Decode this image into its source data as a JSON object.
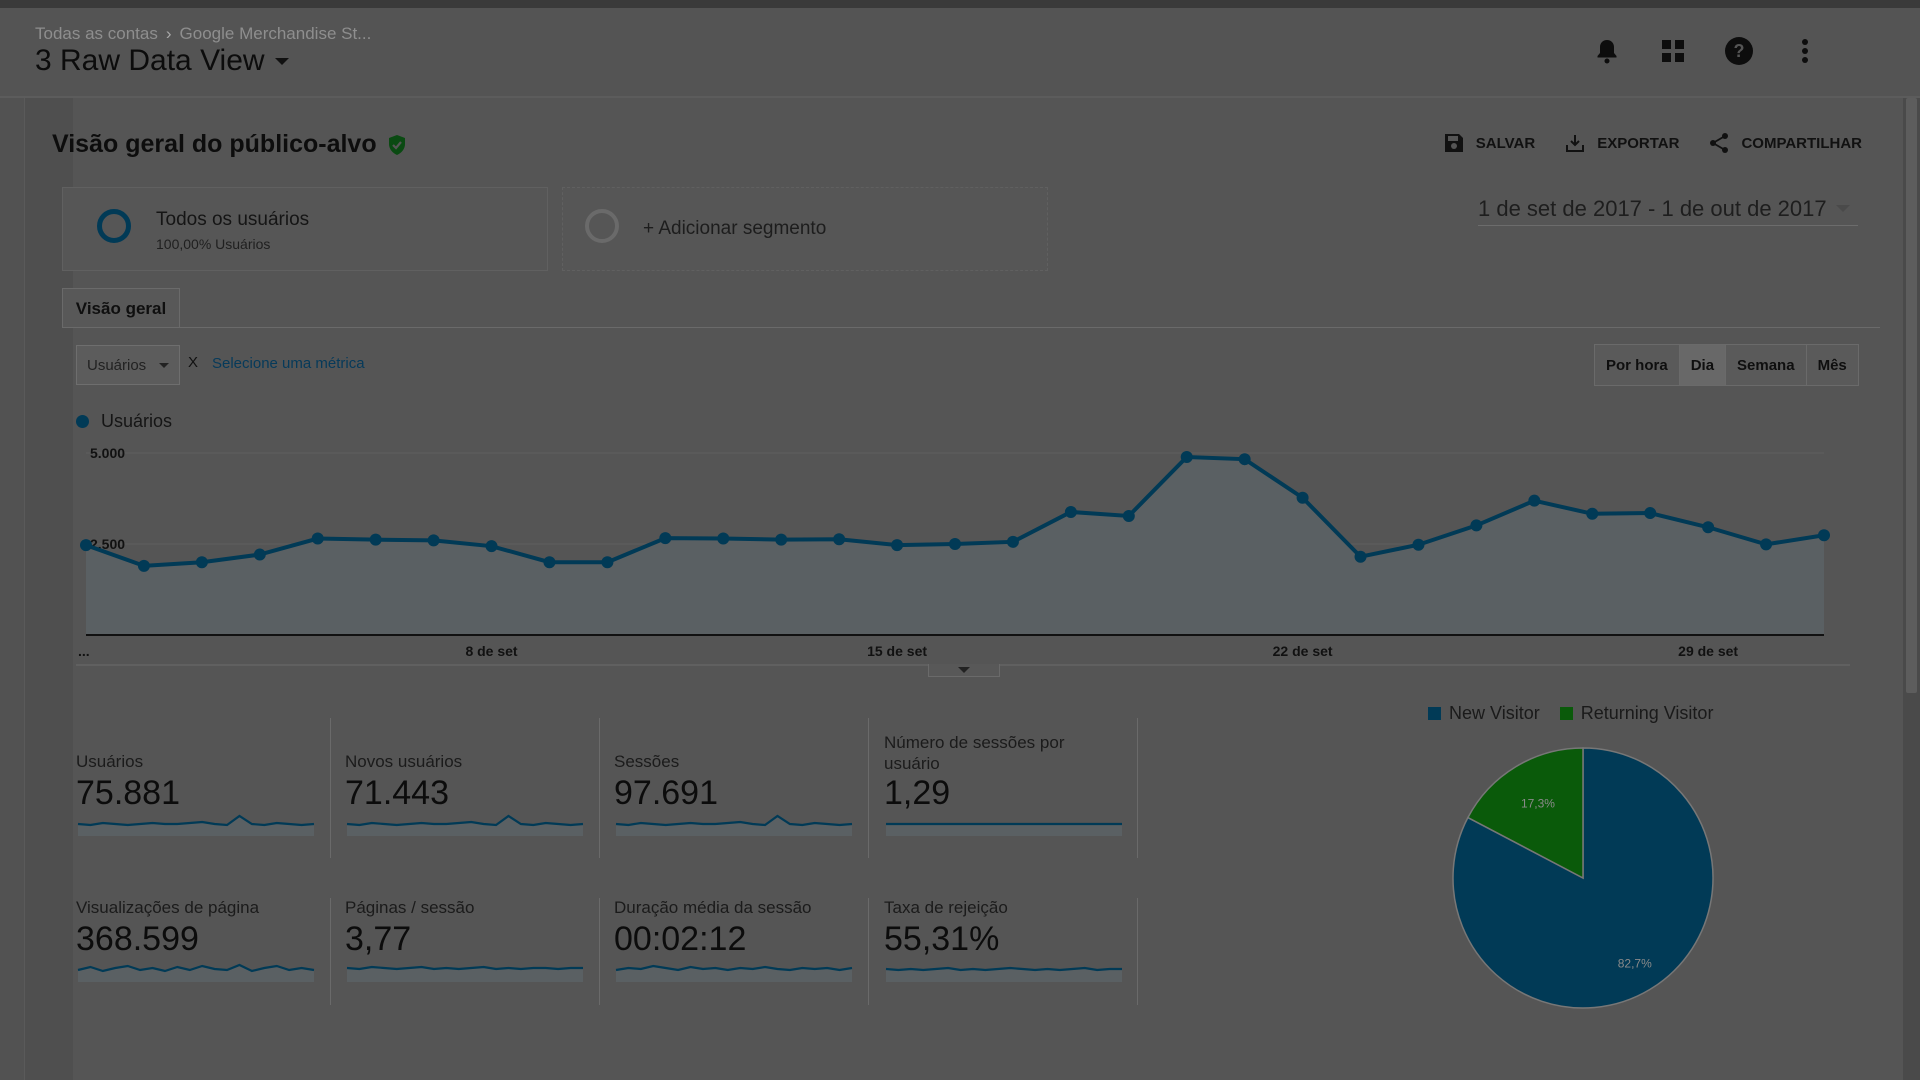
{
  "header": {
    "breadcrumb": [
      "Todas as contas",
      "Google Merchandise St..."
    ],
    "view_name": "3 Raw Data View",
    "icons": [
      "bell-icon",
      "apps-grid-icon",
      "help-icon",
      "more-vert-icon"
    ]
  },
  "report": {
    "title": "Visão geral do público-alvo",
    "actions": {
      "save": "SALVAR",
      "export": "EXPORTAR",
      "share": "COMPARTILHAR"
    }
  },
  "segments": {
    "active": {
      "name": "Todos os usuários",
      "sub": "100,00% Usuários"
    },
    "add": "+ Adicionar segmento"
  },
  "date_range": "1 de set de 2017 - 1 de out de 2017",
  "tabs": [
    "Visão geral"
  ],
  "controls": {
    "metric": "Usuários",
    "x": "X",
    "select_metric": "Selecione uma métrica",
    "granularity": [
      "Por hora",
      "Dia",
      "Semana",
      "Mês"
    ],
    "active_granularity": "Dia"
  },
  "colors": {
    "line": "#013a56",
    "returning": "#0a5a0a",
    "area": "#5a6063",
    "pie_new": "#013a56"
  },
  "chart_data": [
    {
      "type": "area",
      "series": [
        {
          "name": "Usuários",
          "values": [
            2470,
            1900,
            2000,
            2210,
            2650,
            2620,
            2600,
            2440,
            2000,
            2000,
            2660,
            2650,
            2620,
            2630,
            2470,
            2500,
            2560,
            3380,
            3270,
            4890,
            4830,
            3770,
            2150,
            2480,
            3010,
            3690,
            3330,
            3350,
            2960,
            2490,
            2740
          ]
        }
      ],
      "x_ticks": [
        "...",
        "8 de set",
        "15 de set",
        "22 de set",
        "29 de set"
      ],
      "y_ticks": [
        "2.500",
        "5.000"
      ],
      "ylim": [
        0,
        5000
      ]
    },
    {
      "type": "pie",
      "labels": [
        "New Visitor",
        "Returning Visitor"
      ],
      "values": [
        82.7,
        17.3
      ],
      "value_labels": [
        "82,7%",
        "17,3%"
      ],
      "legend": "top"
    }
  ],
  "metrics": [
    {
      "label": "Usuários",
      "value": "75.881"
    },
    {
      "label": "Novos usuários",
      "value": "71.443"
    },
    {
      "label": "Sessões",
      "value": "97.691"
    },
    {
      "label": "Número de sessões por usuário",
      "value": "1,29"
    },
    {
      "label": "Visualizações de página",
      "value": "368.599"
    },
    {
      "label": "Páginas / sessão",
      "value": "3,77"
    },
    {
      "label": "Duração média da sessão",
      "value": "00:02:12"
    },
    {
      "label": "Taxa de rejeição",
      "value": "55,31%"
    }
  ]
}
